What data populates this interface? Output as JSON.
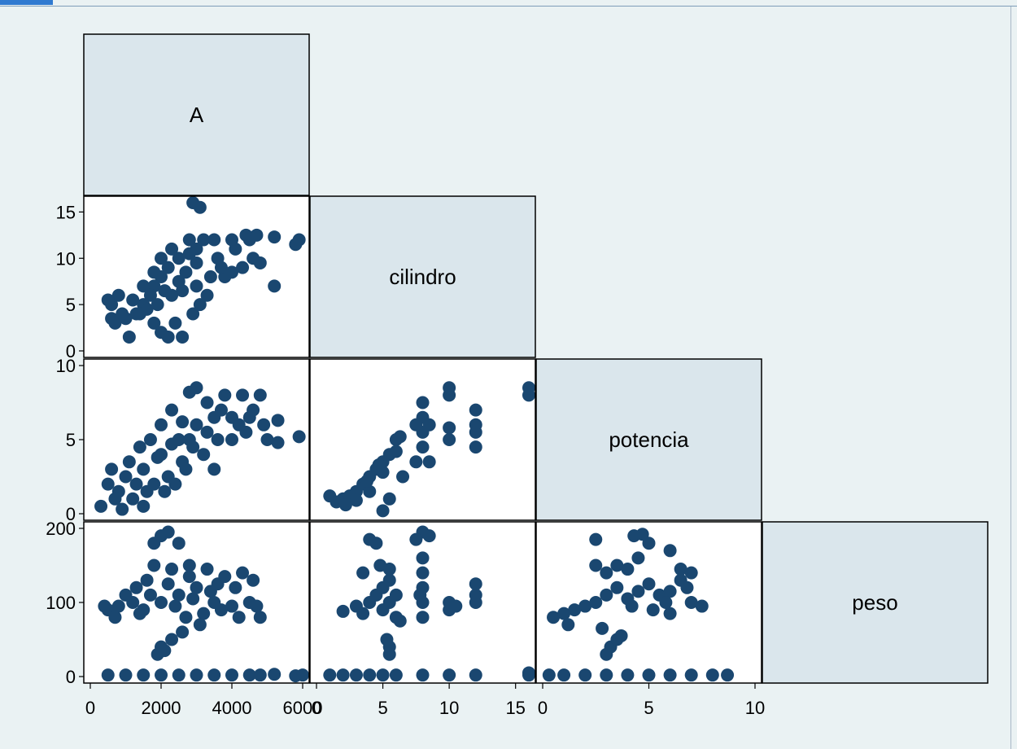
{
  "window": {
    "tab_color": "#2f7ad0",
    "background": "#eaf2f3"
  },
  "chart_data": {
    "type": "scatter",
    "subtype": "scatter-matrix-lower",
    "title": "",
    "marker_color": "#1a4770",
    "diagonal_fill": "#dae6ec",
    "variables": [
      {
        "name": "A",
        "range": [
          0,
          6000
        ],
        "ticks": [
          0,
          2000,
          4000,
          6000
        ]
      },
      {
        "name": "cilindro",
        "range": [
          0,
          16
        ],
        "ticks": [
          0,
          5,
          10,
          15
        ]
      },
      {
        "name": "potencia",
        "range": [
          0,
          10
        ],
        "ticks": [
          0,
          5,
          10
        ]
      },
      {
        "name": "peso",
        "range": [
          0,
          200
        ],
        "ticks": [
          0,
          100,
          200
        ]
      }
    ],
    "tick_labels": {
      "A": [
        "0",
        "2000",
        "4000",
        "6000"
      ],
      "cilindro": [
        "0",
        "5",
        "10",
        "15"
      ],
      "potencia": [
        "0",
        "5",
        "10"
      ],
      "peso": [
        "0",
        "100",
        "200"
      ]
    },
    "panels": [
      {
        "row": "cilindro",
        "col": "A",
        "points": [
          [
            2000,
            8
          ],
          [
            2200,
            9
          ],
          [
            1800,
            7
          ],
          [
            2500,
            10
          ],
          [
            3000,
            11
          ],
          [
            3500,
            12
          ],
          [
            4000,
            12
          ],
          [
            4500,
            12
          ],
          [
            3000,
            7
          ],
          [
            2600,
            6.5
          ],
          [
            2300,
            6
          ],
          [
            1500,
            5
          ],
          [
            1200,
            5.5
          ],
          [
            800,
            6
          ],
          [
            600,
            5
          ],
          [
            500,
            5.5
          ],
          [
            700,
            3
          ],
          [
            1000,
            3.5
          ],
          [
            1300,
            4
          ],
          [
            1600,
            4.5
          ],
          [
            1900,
            5
          ],
          [
            2000,
            2
          ],
          [
            2200,
            1.5
          ],
          [
            2600,
            1.5
          ],
          [
            1100,
            1.5
          ],
          [
            2900,
            4
          ],
          [
            3300,
            6
          ],
          [
            3800,
            8
          ],
          [
            4300,
            9
          ],
          [
            4600,
            10
          ],
          [
            4100,
            11
          ],
          [
            3600,
            10
          ],
          [
            3000,
            9.5
          ],
          [
            2700,
            8.5
          ],
          [
            2500,
            7.5
          ],
          [
            2100,
            6.5
          ],
          [
            1700,
            6
          ],
          [
            1400,
            4
          ],
          [
            900,
            4
          ],
          [
            600,
            3.5
          ],
          [
            1800,
            3
          ],
          [
            2400,
            3
          ],
          [
            3100,
            5
          ],
          [
            3400,
            8
          ],
          [
            4000,
            8.5
          ],
          [
            2800,
            12
          ],
          [
            3200,
            12
          ],
          [
            4400,
            12.5
          ],
          [
            2900,
            16
          ],
          [
            3100,
            15.5
          ],
          [
            4800,
            9.5
          ],
          [
            5200,
            7
          ],
          [
            5200,
            12.3
          ],
          [
            5800,
            11.5
          ],
          [
            5900,
            12
          ],
          [
            4700,
            12.5
          ],
          [
            3700,
            9
          ],
          [
            2000,
            10
          ],
          [
            2300,
            11
          ],
          [
            1500,
            7
          ],
          [
            1800,
            8.5
          ],
          [
            2800,
            10.5
          ]
        ]
      },
      {
        "row": "potencia",
        "col": "A",
        "points": [
          [
            2000,
            4
          ],
          [
            2500,
            5
          ],
          [
            3000,
            6
          ],
          [
            3500,
            6.5
          ],
          [
            4000,
            6.5
          ],
          [
            1500,
            3
          ],
          [
            1000,
            2.5
          ],
          [
            600,
            3
          ],
          [
            500,
            2
          ],
          [
            800,
            1.5
          ],
          [
            1200,
            1
          ],
          [
            1600,
            1.5
          ],
          [
            2200,
            2.5
          ],
          [
            2600,
            3.5
          ],
          [
            2800,
            5
          ],
          [
            3300,
            5.5
          ],
          [
            4200,
            6
          ],
          [
            4600,
            7
          ],
          [
            4300,
            8
          ],
          [
            3800,
            8
          ],
          [
            3000,
            8.5
          ],
          [
            2800,
            8.2
          ],
          [
            3300,
            7.5
          ],
          [
            2300,
            7
          ],
          [
            2000,
            6
          ],
          [
            1700,
            5
          ],
          [
            1400,
            4.5
          ],
          [
            1100,
            3.5
          ],
          [
            700,
            1
          ],
          [
            300,
            0.5
          ],
          [
            900,
            0.3
          ],
          [
            1500,
            0.5
          ],
          [
            2100,
            1.5
          ],
          [
            2400,
            2
          ],
          [
            2700,
            3
          ],
          [
            3200,
            4
          ],
          [
            3600,
            5
          ],
          [
            4000,
            5
          ],
          [
            4400,
            5.5
          ],
          [
            4900,
            6
          ],
          [
            5300,
            4.8
          ],
          [
            5300,
            6.3
          ],
          [
            5900,
            5.2
          ],
          [
            4800,
            8
          ],
          [
            5000,
            5
          ],
          [
            3500,
            3
          ],
          [
            1800,
            2
          ],
          [
            1300,
            2
          ],
          [
            2900,
            4.5
          ],
          [
            3700,
            7
          ],
          [
            4500,
            6.5
          ],
          [
            2600,
            6.2
          ],
          [
            1900,
            3.8
          ],
          [
            2300,
            4.7
          ]
        ]
      },
      {
        "row": "potencia",
        "col": "cilindro",
        "points": [
          [
            1,
            1.2
          ],
          [
            1.5,
            0.8
          ],
          [
            2,
            1
          ],
          [
            2.5,
            1.2
          ],
          [
            3,
            1.5
          ],
          [
            3.5,
            2
          ],
          [
            4,
            2.5
          ],
          [
            4.5,
            3
          ],
          [
            5,
            3.5
          ],
          [
            5.5,
            4
          ],
          [
            6,
            5
          ],
          [
            6,
            4.2
          ],
          [
            4,
            1.5
          ],
          [
            5,
            2.8
          ],
          [
            3,
            0.9
          ],
          [
            2.2,
            0.6
          ],
          [
            5.5,
            1
          ],
          [
            6.5,
            2.5
          ],
          [
            7.5,
            3.5
          ],
          [
            8,
            4.5
          ],
          [
            8,
            5.5
          ],
          [
            8,
            6.5
          ],
          [
            8,
            7.5
          ],
          [
            7.5,
            6
          ],
          [
            8.5,
            6
          ],
          [
            8.5,
            3.5
          ],
          [
            10,
            5
          ],
          [
            10,
            5.8
          ],
          [
            10,
            8
          ],
          [
            10,
            8.5
          ],
          [
            12,
            4.5
          ],
          [
            12,
            5.5
          ],
          [
            12,
            6
          ],
          [
            12,
            7
          ],
          [
            16,
            8
          ],
          [
            16,
            8.5
          ],
          [
            5,
            0.2
          ],
          [
            6.3,
            5.2
          ],
          [
            4.7,
            3.3
          ],
          [
            3.8,
            2.2
          ]
        ]
      },
      {
        "row": "peso",
        "col": "A",
        "points": [
          [
            500,
            90
          ],
          [
            800,
            95
          ],
          [
            1200,
            100
          ],
          [
            1500,
            90
          ],
          [
            2000,
            100
          ],
          [
            2500,
            110
          ],
          [
            3000,
            120
          ],
          [
            3500,
            100
          ],
          [
            4000,
            95
          ],
          [
            4500,
            100
          ],
          [
            4300,
            140
          ],
          [
            3800,
            135
          ],
          [
            3300,
            145
          ],
          [
            2800,
            150
          ],
          [
            2300,
            145
          ],
          [
            1800,
            150
          ],
          [
            2000,
            190
          ],
          [
            2200,
            195
          ],
          [
            2500,
            180
          ],
          [
            1800,
            180
          ],
          [
            2000,
            40
          ],
          [
            2100,
            35
          ],
          [
            1900,
            30
          ],
          [
            2300,
            50
          ],
          [
            1600,
            130
          ],
          [
            1300,
            120
          ],
          [
            1000,
            110
          ],
          [
            700,
            80
          ],
          [
            400,
            95
          ],
          [
            2700,
            80
          ],
          [
            3200,
            85
          ],
          [
            3700,
            90
          ],
          [
            4200,
            80
          ],
          [
            4700,
            95
          ],
          [
            4800,
            80
          ],
          [
            4600,
            130
          ],
          [
            3400,
            115
          ],
          [
            2900,
            105
          ],
          [
            2400,
            95
          ],
          [
            1400,
            85
          ],
          [
            500,
            2
          ],
          [
            1000,
            2
          ],
          [
            1500,
            2
          ],
          [
            2000,
            2
          ],
          [
            2500,
            2
          ],
          [
            3000,
            2
          ],
          [
            3500,
            2
          ],
          [
            4000,
            2
          ],
          [
            4500,
            2
          ],
          [
            4800,
            2
          ],
          [
            5200,
            3
          ],
          [
            5800,
            1
          ],
          [
            6000,
            2
          ],
          [
            3100,
            70
          ],
          [
            2600,
            60
          ],
          [
            4100,
            120
          ],
          [
            1700,
            110
          ],
          [
            2200,
            125
          ],
          [
            3600,
            125
          ],
          [
            2800,
            135
          ]
        ]
      },
      {
        "row": "peso",
        "col": "cilindro",
        "points": [
          [
            2,
            88
          ],
          [
            3,
            95
          ],
          [
            3.5,
            85
          ],
          [
            4,
            100
          ],
          [
            4.5,
            110
          ],
          [
            5,
            120
          ],
          [
            5,
            90
          ],
          [
            5.5,
            100
          ],
          [
            5.5,
            130
          ],
          [
            5.5,
            145
          ],
          [
            5.5,
            40
          ],
          [
            5.5,
            30
          ],
          [
            5.3,
            50
          ],
          [
            6,
            110
          ],
          [
            6,
            80
          ],
          [
            8,
            80
          ],
          [
            8,
            100
          ],
          [
            8,
            120
          ],
          [
            8,
            140
          ],
          [
            8,
            160
          ],
          [
            8,
            195
          ],
          [
            8.5,
            190
          ],
          [
            7.5,
            185
          ],
          [
            10,
            90
          ],
          [
            10,
            100
          ],
          [
            10.5,
            95
          ],
          [
            12,
            100
          ],
          [
            12,
            110
          ],
          [
            12,
            125
          ],
          [
            4,
            185
          ],
          [
            4.5,
            180
          ],
          [
            3.5,
            140
          ],
          [
            16,
            5
          ],
          [
            16,
            2
          ],
          [
            1,
            2
          ],
          [
            2,
            2
          ],
          [
            3,
            2
          ],
          [
            4,
            2
          ],
          [
            5,
            2
          ],
          [
            6,
            2
          ],
          [
            8,
            2
          ],
          [
            10,
            2
          ],
          [
            12,
            2
          ],
          [
            4.8,
            150
          ],
          [
            7.8,
            110
          ],
          [
            6.3,
            75
          ]
        ]
      },
      {
        "row": "peso",
        "col": "potencia",
        "points": [
          [
            0.5,
            80
          ],
          [
            1,
            85
          ],
          [
            1.5,
            90
          ],
          [
            2,
            95
          ],
          [
            2.5,
            100
          ],
          [
            3,
            110
          ],
          [
            3.5,
            120
          ],
          [
            4,
            105
          ],
          [
            4.5,
            115
          ],
          [
            5,
            125
          ],
          [
            5.5,
            110
          ],
          [
            6,
            115
          ],
          [
            6.5,
            130
          ],
          [
            7,
            100
          ],
          [
            7.5,
            95
          ],
          [
            3,
            140
          ],
          [
            3.5,
            150
          ],
          [
            4,
            145
          ],
          [
            2.5,
            150
          ],
          [
            4.5,
            160
          ],
          [
            5,
            180
          ],
          [
            4.3,
            190
          ],
          [
            4.7,
            192
          ],
          [
            2.5,
            185
          ],
          [
            6,
            170
          ],
          [
            3,
            30
          ],
          [
            3.2,
            40
          ],
          [
            3.5,
            50
          ],
          [
            3.7,
            55
          ],
          [
            6,
            85
          ],
          [
            6.5,
            145
          ],
          [
            7,
            140
          ],
          [
            0.3,
            2
          ],
          [
            1,
            2
          ],
          [
            2,
            2
          ],
          [
            3,
            2
          ],
          [
            4,
            2
          ],
          [
            5,
            2
          ],
          [
            6,
            2
          ],
          [
            7,
            2
          ],
          [
            8,
            2
          ],
          [
            8.7,
            2
          ],
          [
            1.2,
            70
          ],
          [
            2.8,
            65
          ],
          [
            5.2,
            90
          ],
          [
            4.2,
            95
          ],
          [
            5.8,
            100
          ],
          [
            6.8,
            120
          ]
        ]
      }
    ]
  }
}
